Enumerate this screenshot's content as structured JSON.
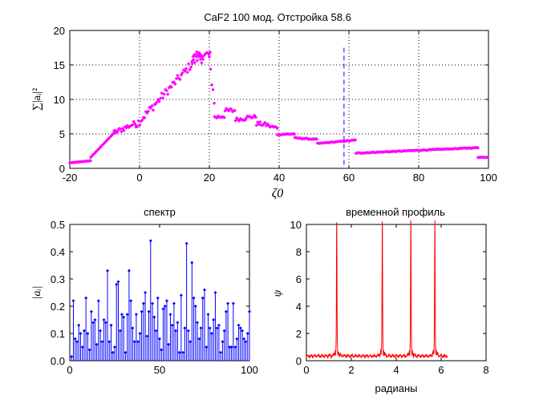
{
  "colors": {
    "magenta": "#ff00ff",
    "blue": "#0000ff",
    "red": "#ff0000"
  },
  "chart_data": [
    {
      "type": "scatter",
      "title": "CaF2 100 мод. Отстройка 58.6",
      "xlabel": "ζ0",
      "ylabel": "∑|aᵢ|²",
      "xlim": [
        -20,
        100
      ],
      "ylim": [
        0,
        20
      ],
      "xticks": [
        -20,
        0,
        20,
        40,
        60,
        80,
        100
      ],
      "yticks": [
        0,
        5,
        10,
        15,
        20
      ],
      "grid": true,
      "color": "#ff00ff",
      "vline": {
        "x": 58.6,
        "y_top": 17.5,
        "color": "#0000ff",
        "style": "dashed"
      },
      "segments": [
        {
          "x0": -20,
          "x1": -14,
          "y0": 0.8,
          "y1": 1.1
        },
        {
          "x0": -14,
          "x1": -7,
          "y0": 1.6,
          "y1": 5.3
        },
        {
          "x0": -8,
          "x1": -1,
          "y0": 5.0,
          "y1": 6.6,
          "noise": 0.4
        },
        {
          "x0": -1,
          "x1": 18,
          "y0": 6.3,
          "y1": 16.8,
          "noise": 0.6
        },
        {
          "x0": 15,
          "x1": 20.5,
          "y0": 15.8,
          "y1": 16.6,
          "noise": 0.9
        },
        {
          "x0": 20,
          "x1": 21.5,
          "y0": 15.5,
          "y1": 9.5,
          "noise": 0.8
        },
        {
          "x0": 21.5,
          "x1": 24.5,
          "y0": 7.4,
          "y1": 7.6,
          "noise": 0.3
        },
        {
          "x0": 24.5,
          "x1": 27.5,
          "y0": 8.3,
          "y1": 8.4,
          "noise": 0.4
        },
        {
          "x0": 27.5,
          "x1": 30.5,
          "y0": 7.1,
          "y1": 7.2,
          "noise": 0.25
        },
        {
          "x0": 30.5,
          "x1": 33.5,
          "y0": 7.4,
          "y1": 7.5,
          "noise": 0.25
        },
        {
          "x0": 33.5,
          "x1": 37,
          "y0": 6.5,
          "y1": 6.3,
          "noise": 0.3
        },
        {
          "x0": 37,
          "x1": 39.5,
          "y0": 6.1,
          "y1": 5.9,
          "noise": 0.2
        },
        {
          "x0": 39.5,
          "x1": 44.5,
          "y0": 4.9,
          "y1": 5.0,
          "noise": 0.08
        },
        {
          "x0": 44.5,
          "x1": 51,
          "y0": 4.4,
          "y1": 4.2,
          "noise": 0.08
        },
        {
          "x0": 51,
          "x1": 62,
          "y0": 3.6,
          "y1": 4.1,
          "noise": 0.05
        },
        {
          "x0": 62,
          "x1": 97,
          "y0": 2.2,
          "y1": 3.0,
          "noise": 0.05
        },
        {
          "x0": 97,
          "x1": 100,
          "y0": 1.6,
          "y1": 1.6,
          "noise": 0.03
        }
      ]
    },
    {
      "type": "stem",
      "title": "спектр",
      "xlabel": "",
      "ylabel": "|aᵢ|",
      "xlim": [
        0,
        100
      ],
      "ylim": [
        0,
        0.5
      ],
      "xticks": [
        0,
        50,
        100
      ],
      "yticks": [
        0,
        0.1,
        0.2,
        0.3,
        0.4,
        0.5
      ],
      "color": "#0000ff",
      "x_start": 1,
      "values": [
        0.015,
        0.22,
        0.08,
        0.07,
        0.13,
        0.1,
        0.05,
        0.11,
        0.23,
        0.1,
        0.04,
        0.18,
        0.14,
        0.15,
        0.06,
        0.22,
        0.11,
        0.07,
        0.15,
        0.14,
        0.33,
        0.07,
        0.13,
        0.03,
        0.05,
        0.28,
        0.29,
        0.11,
        0.17,
        0.16,
        0.03,
        0.17,
        0.33,
        0.22,
        0.12,
        0.07,
        0.17,
        0.07,
        0.1,
        0.18,
        0.21,
        0.25,
        0.09,
        0.18,
        0.44,
        0.21,
        0.16,
        0.11,
        0.23,
        0.08,
        0.04,
        0.19,
        0.2,
        0.22,
        0.06,
        0.17,
        0.13,
        0.21,
        0.11,
        0.14,
        0.03,
        0.24,
        0.03,
        0.12,
        0.43,
        0.11,
        0.07,
        0.36,
        0.23,
        0.2,
        0.14,
        0.08,
        0.12,
        0.23,
        0.26,
        0.05,
        0.17,
        0.12,
        0.1,
        0.15,
        0.25,
        0.12,
        0.13,
        0.03,
        0.07,
        0.11,
        0.18,
        0.21,
        0.05,
        0.05,
        0.21,
        0.05,
        0.08,
        0.13,
        0.12,
        0.11,
        0.08,
        0.07,
        0.1,
        0.18
      ]
    },
    {
      "type": "line",
      "title": "временной профиль",
      "xlabel": "радианы",
      "ylabel": "ψ",
      "xlim": [
        0,
        8
      ],
      "ylim": [
        0,
        10
      ],
      "xticks": [
        0,
        2,
        4,
        6,
        8
      ],
      "yticks": [
        0,
        2,
        4,
        6,
        8,
        10
      ],
      "color": "#ff0000",
      "x_range": [
        0.0,
        6.28
      ],
      "baseline": 0.35,
      "peaks": [
        {
          "x": 1.35,
          "height": 9.6
        },
        {
          "x": 3.38,
          "height": 9.5
        },
        {
          "x": 4.65,
          "height": 9.6
        },
        {
          "x": 5.72,
          "height": 9.5
        }
      ]
    }
  ]
}
